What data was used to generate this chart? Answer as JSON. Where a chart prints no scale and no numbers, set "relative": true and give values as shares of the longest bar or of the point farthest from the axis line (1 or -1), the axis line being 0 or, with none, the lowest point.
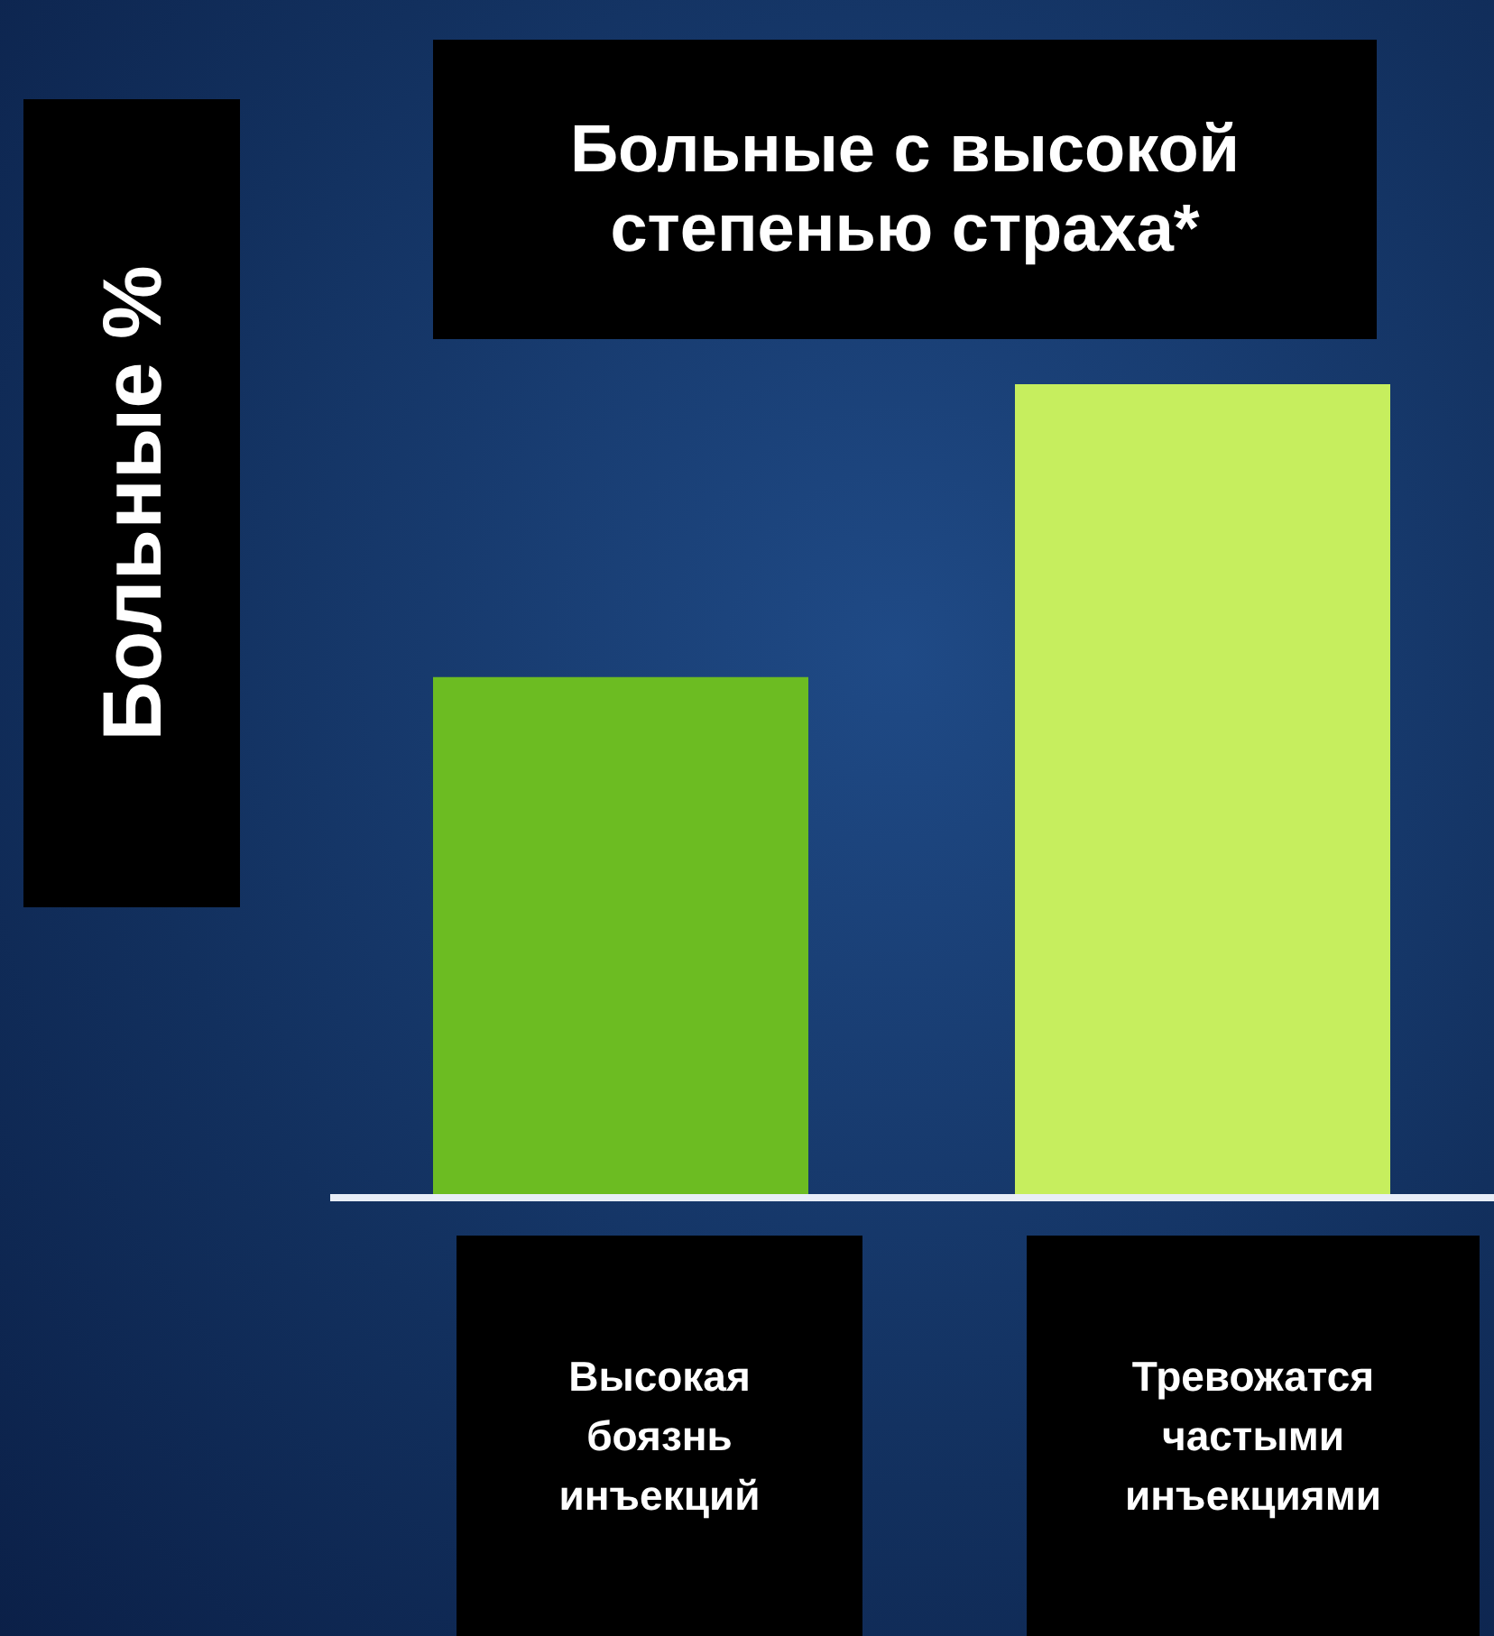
{
  "chart_data": {
    "type": "bar",
    "relative": true,
    "title": "Больные с высокой степенью страха*",
    "ylabel": "Больные %",
    "categories": [
      "Высокая боязнь инъекций",
      "Тревожатся частыми инъекциями"
    ],
    "values": [
      0.64,
      1
    ],
    "colors": [
      "#6cbc22",
      "#c6ee5e"
    ]
  }
}
